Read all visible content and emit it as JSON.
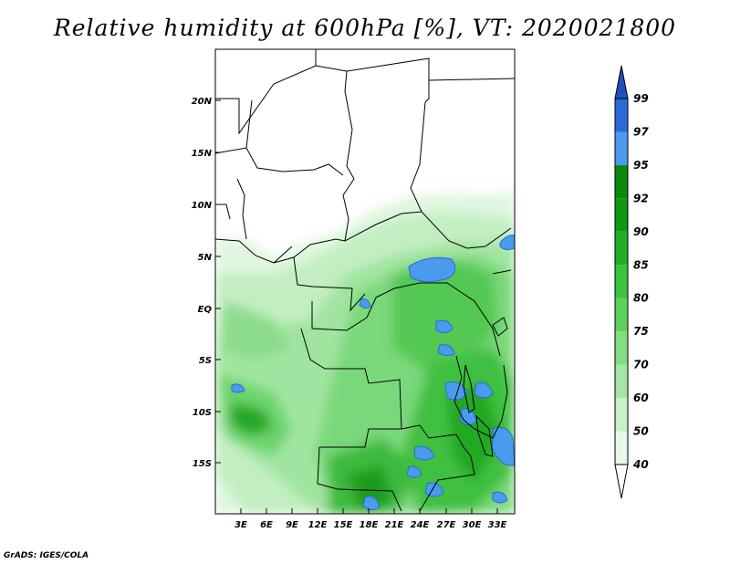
{
  "title": "Relative humidity at 600hPa [%], VT: 2020021800",
  "credit": "GrADS: IGES/COLA",
  "map": {
    "lat_labels": [
      "20N",
      "15N",
      "10N",
      "5N",
      "EQ",
      "5S",
      "10S",
      "15S"
    ],
    "lon_labels": [
      "3E",
      "6E",
      "9E",
      "12E",
      "15E",
      "18E",
      "21E",
      "24E",
      "27E",
      "30E",
      "33E"
    ]
  },
  "colorbar": {
    "levels": [
      "40",
      "50",
      "60",
      "70",
      "75",
      "80",
      "85",
      "90",
      "92",
      "95",
      "97",
      "99"
    ],
    "colors": [
      "#ffffff",
      "#e6f9e6",
      "#c8f0c8",
      "#a4e6a4",
      "#82dc82",
      "#5ed05e",
      "#3cc23c",
      "#22b022",
      "#109810",
      "#0a8a0a",
      "#4a9aee",
      "#2a6ad8",
      "#2050b8"
    ]
  }
}
